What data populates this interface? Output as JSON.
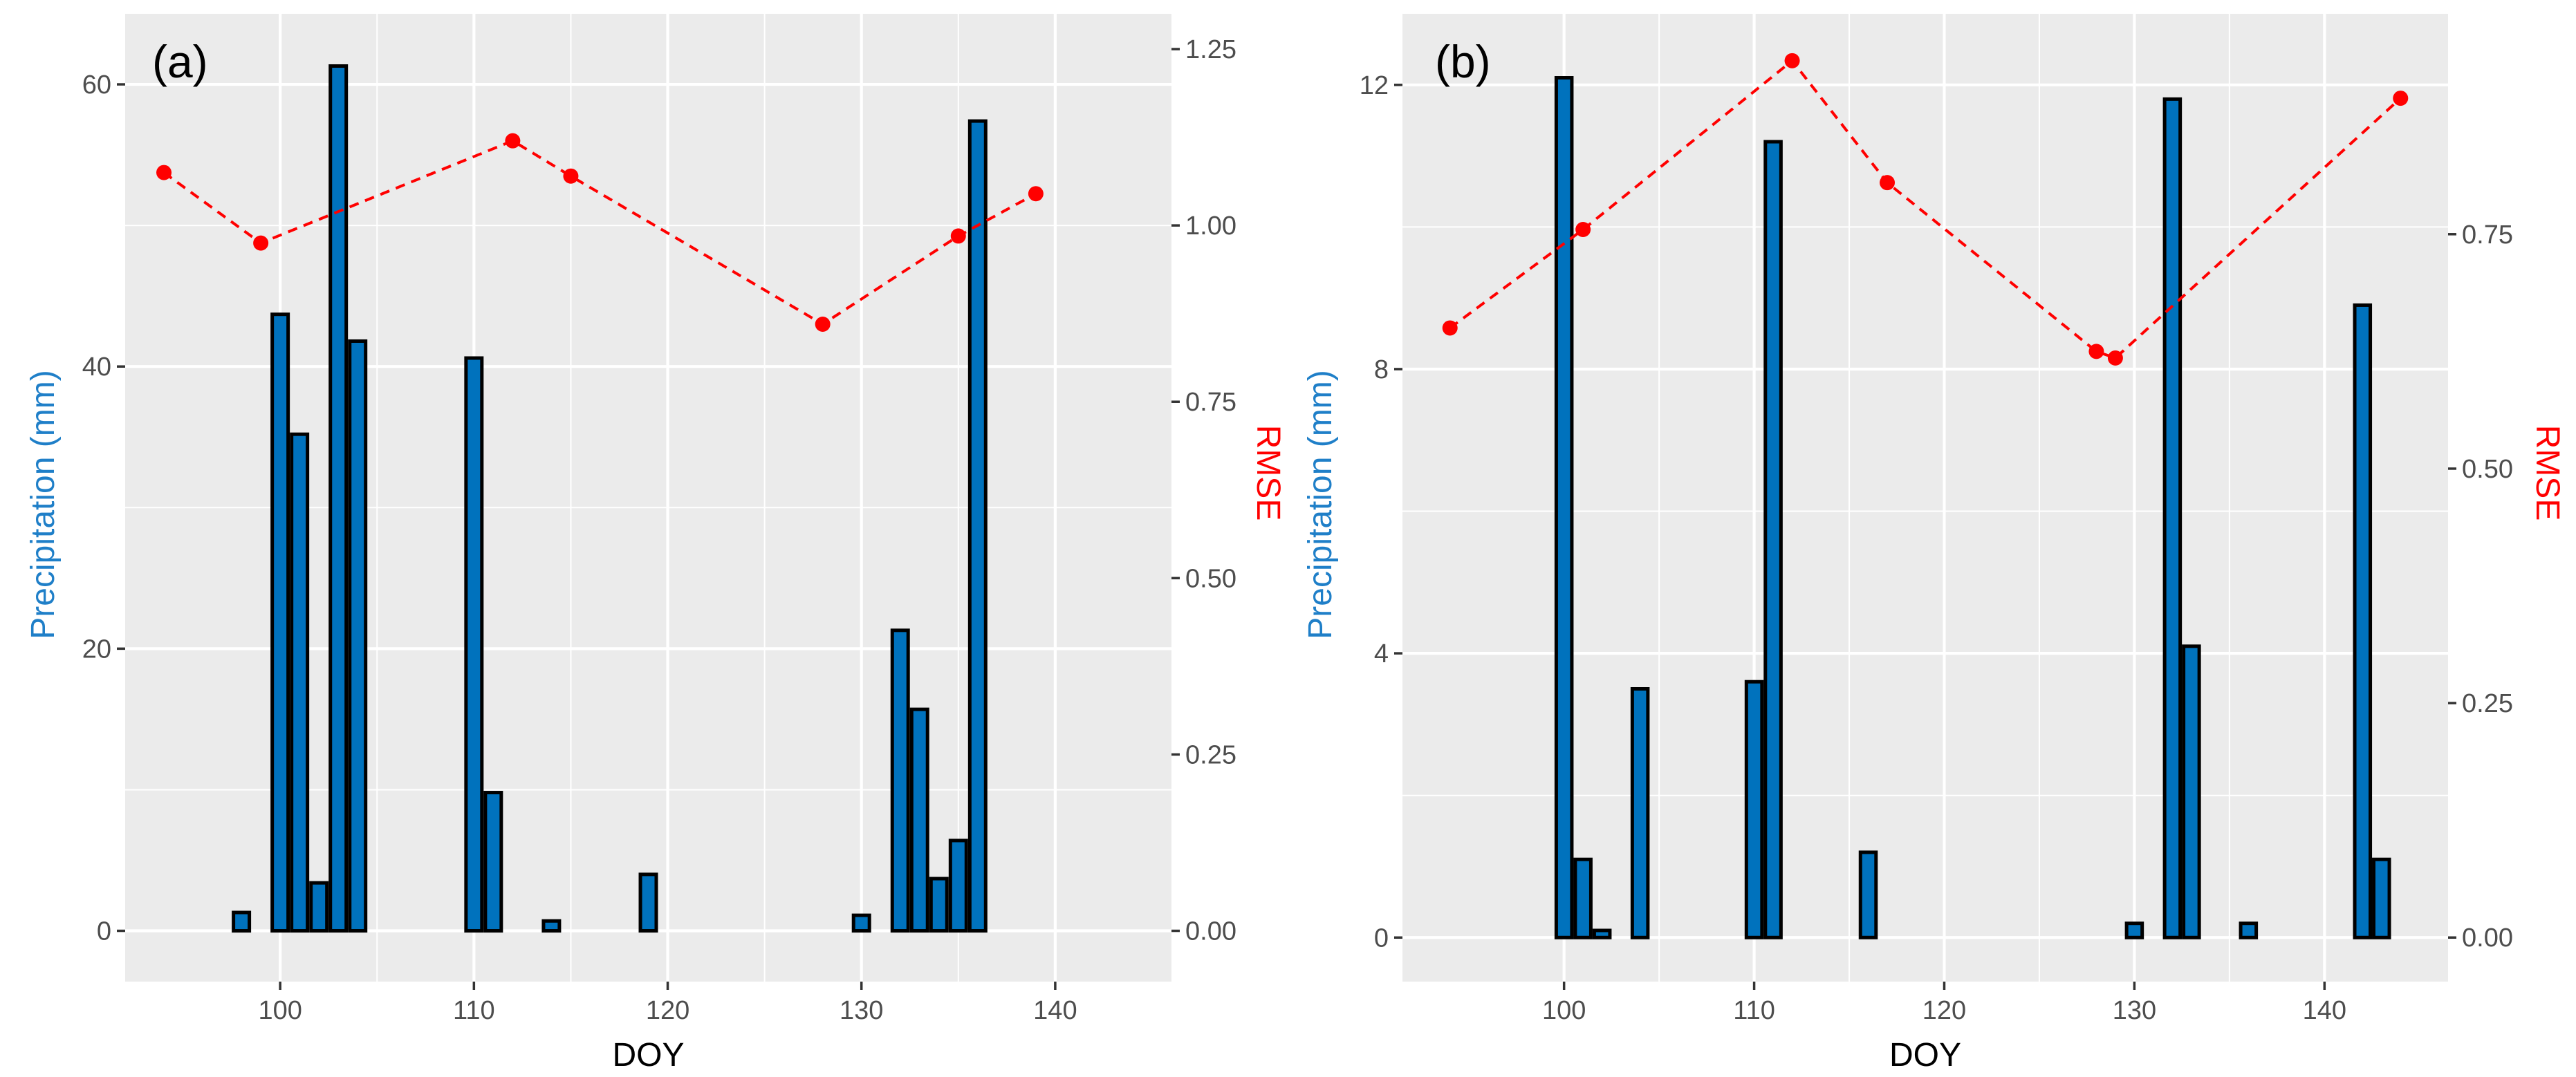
{
  "colors": {
    "bar_fill": "#0072BD",
    "rmse": "#FF0000",
    "precip_label": "#1F7FC8"
  },
  "chart_data": [
    {
      "panel_label": "(a)",
      "type": "bar+line",
      "xlabel": "DOY",
      "ylabel": "Precipitation (mm)",
      "y2label": "RMSE",
      "xlim": [
        92,
        146
      ],
      "ylim": [
        -3.6,
        65
      ],
      "y2lim": [
        -0.072,
        1.3
      ],
      "xticks": [
        100,
        110,
        120,
        130,
        140
      ],
      "yticks": [
        0,
        20,
        40,
        60
      ],
      "y2ticks": [
        0.0,
        0.25,
        0.5,
        0.75,
        1.0,
        1.25
      ],
      "xtick_labels": [
        "100",
        "110",
        "120",
        "130",
        "140"
      ],
      "ytick_labels": [
        "0",
        "20",
        "40",
        "60"
      ],
      "y2tick_labels": [
        "0.00",
        "0.25",
        "0.50",
        "0.75",
        "1.00",
        "1.25"
      ],
      "bars": {
        "name": "Precipitation",
        "x": [
          98,
          100,
          101,
          102,
          103,
          104,
          110,
          111,
          114,
          119,
          130,
          132,
          133,
          134,
          135,
          136
        ],
        "values": [
          1.3,
          43.7,
          35.2,
          3.4,
          61.3,
          41.8,
          40.6,
          9.8,
          0.7,
          4.0,
          1.1,
          21.3,
          15.7,
          3.7,
          6.4,
          57.4
        ]
      },
      "rmse": {
        "name": "RMSE",
        "x": [
          94,
          99,
          112,
          115,
          128,
          135,
          139
        ],
        "values": [
          1.075,
          0.975,
          1.12,
          1.07,
          0.86,
          0.985,
          1.045
        ]
      }
    },
    {
      "panel_label": "(b)",
      "type": "bar+line",
      "xlabel": "DOY",
      "ylabel": "Precipitation (mm)",
      "y2label": "RMSE",
      "xlim": [
        91.5,
        146.5
      ],
      "ylim": [
        -0.62,
        13.0
      ],
      "y2lim": [
        -0.047,
        0.985
      ],
      "xticks": [
        100,
        110,
        120,
        130,
        140
      ],
      "yticks": [
        0,
        4,
        8,
        12
      ],
      "y2ticks": [
        0.0,
        0.25,
        0.5,
        0.75
      ],
      "xtick_labels": [
        "100",
        "110",
        "120",
        "130",
        "140"
      ],
      "ytick_labels": [
        "0",
        "4",
        "8",
        "12"
      ],
      "y2tick_labels": [
        "0.00",
        "0.25",
        "0.50",
        "0.75"
      ],
      "bars": {
        "name": "Precipitation",
        "x": [
          100,
          101,
          102,
          104,
          110,
          111,
          116,
          130,
          132,
          133,
          136,
          142,
          143
        ],
        "values": [
          12.1,
          1.1,
          0.1,
          3.5,
          3.6,
          11.2,
          1.2,
          0.2,
          11.8,
          4.1,
          0.2,
          8.9,
          1.1
        ]
      },
      "rmse": {
        "name": "RMSE",
        "x": [
          94,
          101,
          112,
          117,
          128,
          129,
          144
        ],
        "values": [
          0.65,
          0.755,
          0.935,
          0.805,
          0.625,
          0.618,
          0.895
        ]
      }
    }
  ]
}
